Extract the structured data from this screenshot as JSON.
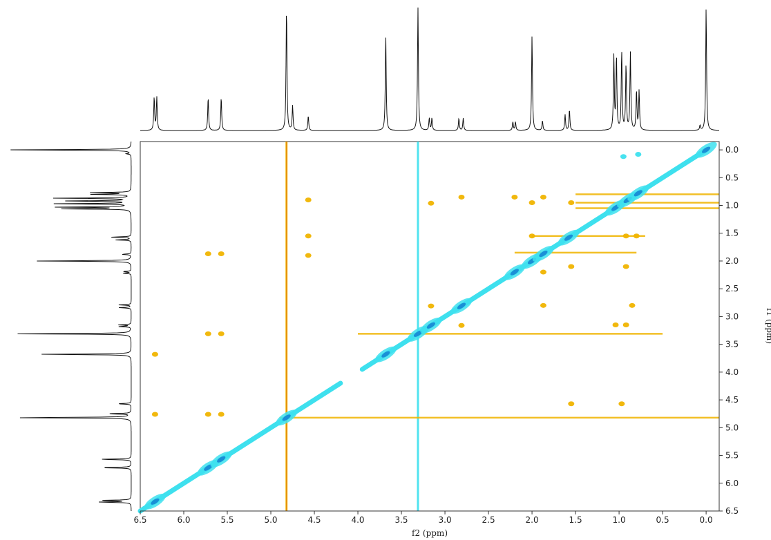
{
  "chart_data": {
    "type": "heatmap",
    "subtype": "2D NMR homonuclear correlation map (contour) with 1D projection spectra",
    "xlabel": "f2 (ppm)",
    "ylabel": "f1 (ppm)",
    "xlim": [
      6.5,
      -0.15
    ],
    "ylim": [
      -0.15,
      6.5
    ],
    "x_ticks": [
      "6.5",
      "6.0",
      "5.5",
      "5.0",
      "4.5",
      "4.0",
      "3.5",
      "3.0",
      "2.5",
      "2.0",
      "1.5",
      "1.0",
      "0.5",
      "0.0"
    ],
    "y_ticks": [
      "0.0",
      "0.5",
      "1.0",
      "1.5",
      "2.0",
      "2.5",
      "3.0",
      "3.5",
      "4.0",
      "4.5",
      "5.0",
      "5.5",
      "6.0",
      "6.5"
    ],
    "grid": false,
    "colors": {
      "positive": "#3ee0ee",
      "positive_dense": "#1a8fd6",
      "negative": "#f0b400",
      "negative_dense": "#e07000",
      "intermediate": "#8ce060",
      "frame": "#333333",
      "trace": "#111111"
    },
    "projection_peaks": [
      {
        "ppm": 6.34,
        "height": 0.27
      },
      {
        "ppm": 6.31,
        "height": 0.27
      },
      {
        "ppm": 5.72,
        "height": 0.27
      },
      {
        "ppm": 5.57,
        "height": 0.27
      },
      {
        "ppm": 4.82,
        "height": 1.0
      },
      {
        "ppm": 4.75,
        "height": 0.2
      },
      {
        "ppm": 4.57,
        "height": 0.12
      },
      {
        "ppm": 3.68,
        "height": 0.78
      },
      {
        "ppm": 3.31,
        "height": 1.0
      },
      {
        "ppm": 3.18,
        "height": 0.1
      },
      {
        "ppm": 3.15,
        "height": 0.1
      },
      {
        "ppm": 2.84,
        "height": 0.1
      },
      {
        "ppm": 2.79,
        "height": 0.1
      },
      {
        "ppm": 2.22,
        "height": 0.07
      },
      {
        "ppm": 2.19,
        "height": 0.07
      },
      {
        "ppm": 2.0,
        "height": 0.77
      },
      {
        "ppm": 1.88,
        "height": 0.08
      },
      {
        "ppm": 1.62,
        "height": 0.13
      },
      {
        "ppm": 1.57,
        "height": 0.17
      },
      {
        "ppm": 1.06,
        "height": 0.6
      },
      {
        "ppm": 1.03,
        "height": 0.6
      },
      {
        "ppm": 0.97,
        "height": 0.64
      },
      {
        "ppm": 0.92,
        "height": 0.53
      },
      {
        "ppm": 0.87,
        "height": 0.63
      },
      {
        "ppm": 0.8,
        "height": 0.32
      },
      {
        "ppm": 0.77,
        "height": 0.32
      },
      {
        "ppm": 0.07,
        "height": 0.04
      },
      {
        "ppm": 0.0,
        "height": 1.0
      }
    ],
    "diagonal_peaks": [
      {
        "f2": 6.33,
        "f1": 6.33,
        "sign": "positive"
      },
      {
        "f2": 5.72,
        "f1": 5.72,
        "sign": "positive"
      },
      {
        "f2": 5.57,
        "f1": 5.57,
        "sign": "positive"
      },
      {
        "f2": 4.82,
        "f1": 4.82,
        "sign": "positive"
      },
      {
        "f2": 3.68,
        "f1": 3.68,
        "sign": "positive"
      },
      {
        "f2": 3.31,
        "f1": 3.31,
        "sign": "positive"
      },
      {
        "f2": 3.16,
        "f1": 3.16,
        "sign": "positive"
      },
      {
        "f2": 2.81,
        "f1": 2.81,
        "sign": "positive"
      },
      {
        "f2": 2.2,
        "f1": 2.2,
        "sign": "positive"
      },
      {
        "f2": 2.0,
        "f1": 2.0,
        "sign": "positive"
      },
      {
        "f2": 1.87,
        "f1": 1.87,
        "sign": "positive"
      },
      {
        "f2": 1.58,
        "f1": 1.58,
        "sign": "positive"
      },
      {
        "f2": 1.04,
        "f1": 1.04,
        "sign": "positive"
      },
      {
        "f2": 0.9,
        "f1": 0.9,
        "sign": "positive"
      },
      {
        "f2": 0.78,
        "f1": 0.78,
        "sign": "positive"
      },
      {
        "f2": 0.0,
        "f1": 0.0,
        "sign": "positive"
      }
    ],
    "cross_peaks": [
      {
        "f2": 6.33,
        "f1": 4.76,
        "sign": "negative"
      },
      {
        "f2": 6.33,
        "f1": 3.68,
        "sign": "negative"
      },
      {
        "f2": 5.72,
        "f1": 1.87,
        "sign": "negative"
      },
      {
        "f2": 5.57,
        "f1": 1.87,
        "sign": "negative"
      },
      {
        "f2": 5.72,
        "f1": 3.31,
        "sign": "negative"
      },
      {
        "f2": 5.57,
        "f1": 3.31,
        "sign": "negative"
      },
      {
        "f2": 5.72,
        "f1": 4.76,
        "sign": "negative"
      },
      {
        "f2": 5.57,
        "f1": 4.76,
        "sign": "negative"
      },
      {
        "f2": 4.57,
        "f1": 0.9,
        "sign": "negative"
      },
      {
        "f2": 4.57,
        "f1": 1.55,
        "sign": "negative"
      },
      {
        "f2": 4.57,
        "f1": 1.9,
        "sign": "negative"
      },
      {
        "f2": 3.16,
        "f1": 0.96,
        "sign": "negative"
      },
      {
        "f2": 3.16,
        "f1": 2.81,
        "sign": "negative"
      },
      {
        "f2": 2.81,
        "f1": 0.85,
        "sign": "negative"
      },
      {
        "f2": 2.81,
        "f1": 3.16,
        "sign": "negative"
      },
      {
        "f2": 2.2,
        "f1": 0.85,
        "sign": "negative"
      },
      {
        "f2": 2.0,
        "f1": 0.95,
        "sign": "negative"
      },
      {
        "f2": 2.0,
        "f1": 1.55,
        "sign": "negative"
      },
      {
        "f2": 1.87,
        "f1": 0.85,
        "sign": "negative"
      },
      {
        "f2": 1.87,
        "f1": 2.2,
        "sign": "negative"
      },
      {
        "f2": 1.87,
        "f1": 2.8,
        "sign": "negative"
      },
      {
        "f2": 1.55,
        "f1": 0.95,
        "sign": "negative"
      },
      {
        "f2": 1.55,
        "f1": 2.1,
        "sign": "negative"
      },
      {
        "f2": 1.55,
        "f1": 4.57,
        "sign": "negative"
      },
      {
        "f2": 1.04,
        "f1": 3.15,
        "sign": "negative"
      },
      {
        "f2": 0.92,
        "f1": 3.15,
        "sign": "negative"
      },
      {
        "f2": 0.85,
        "f1": 2.8,
        "sign": "negative"
      },
      {
        "f2": 0.97,
        "f1": 4.57,
        "sign": "negative"
      },
      {
        "f2": 0.92,
        "f1": 1.55,
        "sign": "negative"
      },
      {
        "f2": 0.8,
        "f1": 1.55,
        "sign": "negative"
      },
      {
        "f2": 0.92,
        "f1": 2.1,
        "sign": "negative"
      },
      {
        "f2": 0.95,
        "f1": 0.12,
        "sign": "positive"
      },
      {
        "f2": 0.78,
        "f1": 0.08,
        "sign": "positive"
      }
    ],
    "ridges": [
      {
        "orientation": "vertical",
        "f2": 4.82,
        "from": -0.15,
        "to": 6.5,
        "sign": "negative"
      },
      {
        "orientation": "vertical",
        "f2": 3.31,
        "from": -0.15,
        "to": 6.5,
        "sign": "positive"
      },
      {
        "orientation": "horizontal",
        "f1": 4.82,
        "from": 4.9,
        "to": -0.15,
        "sign": "negative"
      },
      {
        "orientation": "horizontal",
        "f1": 3.31,
        "from": 4.0,
        "to": 0.5,
        "sign": "negative"
      },
      {
        "orientation": "horizontal",
        "f1": 0.8,
        "from": 1.5,
        "to": -0.15,
        "sign": "negative"
      },
      {
        "orientation": "horizontal",
        "f1": 0.95,
        "from": 1.5,
        "to": -0.15,
        "sign": "negative"
      },
      {
        "orientation": "horizontal",
        "f1": 1.05,
        "from": 1.5,
        "to": -0.15,
        "sign": "negative"
      },
      {
        "orientation": "horizontal",
        "f1": 1.55,
        "from": 2.0,
        "to": 0.7,
        "sign": "negative"
      },
      {
        "orientation": "horizontal",
        "f1": 1.85,
        "from": 2.2,
        "to": 0.8,
        "sign": "negative"
      }
    ]
  }
}
